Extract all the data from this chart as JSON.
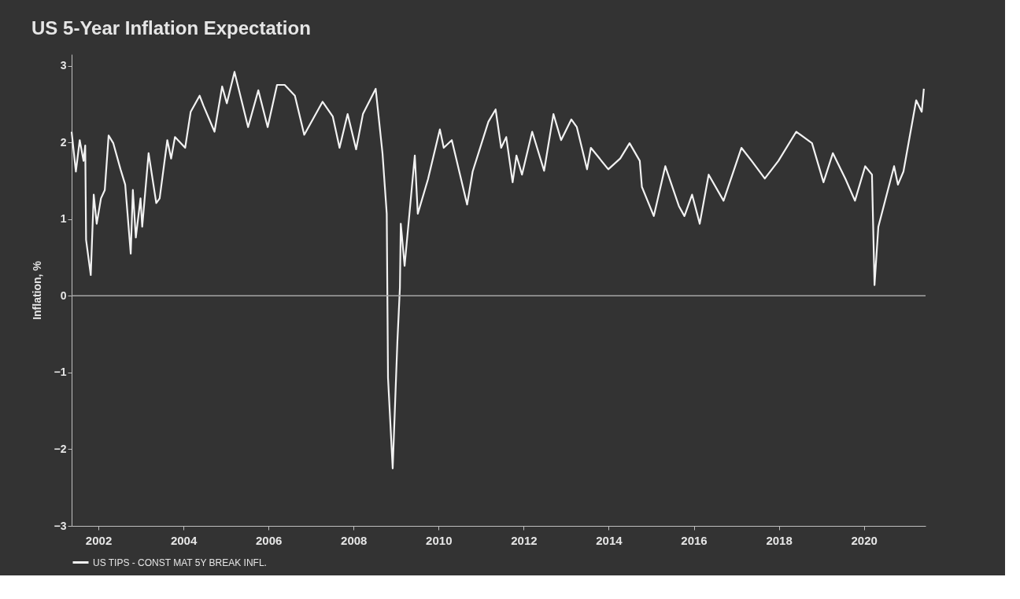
{
  "chart_data": {
    "type": "line",
    "title": "US 5-Year Inflation Expectation",
    "ylabel": "Inflation, %",
    "x": [
      2001.37,
      2001.47,
      2001.56,
      2001.65,
      2001.69,
      2001.71,
      2001.82,
      2001.89,
      2001.96,
      2002.06,
      2002.15,
      2002.24,
      2002.35,
      2002.52,
      2002.63,
      2002.76,
      2002.81,
      2002.88,
      2002.99,
      2003.03,
      2003.18,
      2003.36,
      2003.44,
      2003.62,
      2003.71,
      2003.8,
      2004.04,
      2004.17,
      2004.38,
      2004.47,
      2004.73,
      2004.91,
      2005.02,
      2005.2,
      2005.52,
      2005.76,
      2005.98,
      2006.2,
      2006.38,
      2006.62,
      2006.84,
      2007.27,
      2007.51,
      2007.67,
      2007.86,
      2008.06,
      2008.22,
      2008.52,
      2008.68,
      2008.78,
      2008.81,
      2008.92,
      2009.03,
      2009.09,
      2009.11,
      2009.2,
      2009.44,
      2009.51,
      2009.75,
      2010.03,
      2010.12,
      2010.31,
      2010.67,
      2010.8,
      2011.17,
      2011.34,
      2011.47,
      2011.59,
      2011.74,
      2011.83,
      2011.96,
      2012.2,
      2012.48,
      2012.7,
      2012.88,
      2013.12,
      2013.25,
      2013.49,
      2013.58,
      2013.99,
      2014.27,
      2014.49,
      2014.73,
      2014.78,
      2015.06,
      2015.33,
      2015.65,
      2015.78,
      2015.96,
      2016.14,
      2016.35,
      2016.7,
      2017.12,
      2017.36,
      2017.67,
      2017.99,
      2018.41,
      2018.78,
      2019.05,
      2019.27,
      2019.57,
      2019.79,
      2020.03,
      2020.19,
      2020.25,
      2020.34,
      2020.71,
      2020.8,
      2020.93,
      2021.23,
      2021.36,
      2021.41
    ],
    "series": [
      {
        "name": "US TIPS - CONST MAT 5Y BREAK INFL.",
        "color": "#f2f2f2",
        "values": [
          2.14,
          1.62,
          2.03,
          1.76,
          1.96,
          0.73,
          0.27,
          1.32,
          0.94,
          1.27,
          1.38,
          2.09,
          1.99,
          1.65,
          1.45,
          0.55,
          1.38,
          0.76,
          1.27,
          0.9,
          1.86,
          1.21,
          1.27,
          2.03,
          1.79,
          2.07,
          1.93,
          2.4,
          2.61,
          2.48,
          2.14,
          2.73,
          2.51,
          2.92,
          2.2,
          2.68,
          2.2,
          2.75,
          2.75,
          2.61,
          2.1,
          2.53,
          2.34,
          1.93,
          2.37,
          1.91,
          2.37,
          2.7,
          1.86,
          1.07,
          -1.07,
          -2.25,
          -0.6,
          0.11,
          0.94,
          0.39,
          1.83,
          1.07,
          1.52,
          2.17,
          1.93,
          2.03,
          1.19,
          1.62,
          2.27,
          2.43,
          1.93,
          2.07,
          1.48,
          1.83,
          1.58,
          2.14,
          1.63,
          2.37,
          2.03,
          2.3,
          2.2,
          1.65,
          1.93,
          1.65,
          1.79,
          1.99,
          1.76,
          1.42,
          1.04,
          1.69,
          1.17,
          1.04,
          1.32,
          0.94,
          1.58,
          1.24,
          1.93,
          1.76,
          1.53,
          1.76,
          2.14,
          1.99,
          1.48,
          1.86,
          1.52,
          1.24,
          1.69,
          1.58,
          0.14,
          0.9,
          1.69,
          1.45,
          1.62,
          2.55,
          2.4,
          2.7
        ]
      }
    ],
    "xlim": [
      2001.37,
      2021.45
    ],
    "xticks": [
      2002,
      2004,
      2006,
      2008,
      2010,
      2012,
      2014,
      2016,
      2018,
      2020
    ],
    "ylim": [
      -3,
      3.15
    ],
    "yticks": [
      -3,
      -2,
      -1,
      0,
      1,
      2,
      3
    ],
    "ref_lines": [
      {
        "axis": "y",
        "value": 0,
        "color": "#a6a6a6"
      }
    ],
    "grid": false,
    "legend": "bottom left",
    "marker": "none",
    "line_style": "solid"
  }
}
